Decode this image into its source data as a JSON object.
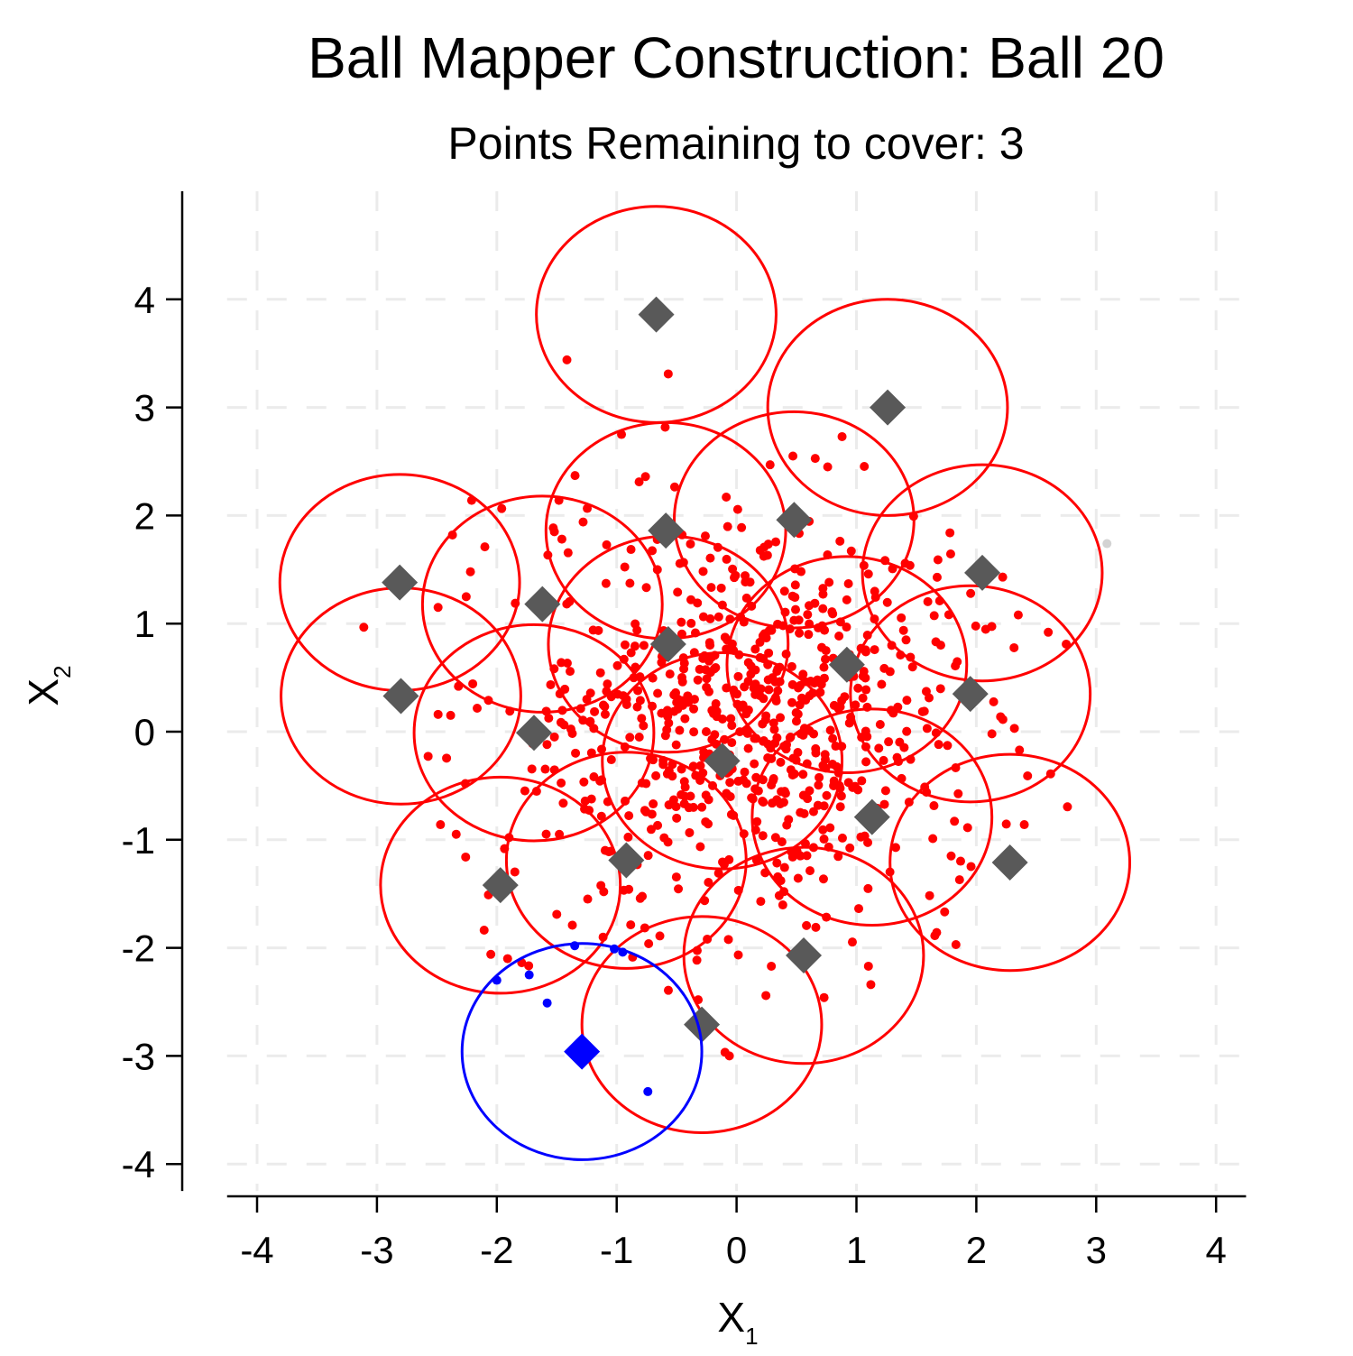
{
  "chart_data": {
    "type": "scatter",
    "title": "Ball Mapper Construction: Ball 20",
    "subtitle": "Points Remaining to cover: 3",
    "xlabel": {
      "main": "X",
      "sub": "1"
    },
    "ylabel": {
      "main": "X",
      "sub": "2"
    },
    "xlim": [
      -4.25,
      4.25
    ],
    "ylim": [
      -4.25,
      5.0
    ],
    "xticks": [
      -4,
      -3,
      -2,
      -1,
      0,
      1,
      2,
      3,
      4
    ],
    "yticks": [
      -4,
      -3,
      -2,
      -1,
      0,
      1,
      2,
      3,
      4
    ],
    "xtick_labels": [
      "-4",
      "-3",
      "-2",
      "-1",
      "0",
      "1",
      "2",
      "3",
      "4"
    ],
    "ytick_labels": [
      "-4",
      "-3",
      "-2",
      "-1",
      "0",
      "1",
      "2",
      "3",
      "4"
    ],
    "grid": true,
    "ball_radius": 1.0,
    "colors": {
      "covered_point": "#ff0000",
      "ball_edge": "#ff0000",
      "center": "#595959",
      "current": "#0000ff",
      "uncovered_point": "#d3d3d3",
      "grid": "#ebebeb"
    },
    "ball_centers": [
      [
        -0.67,
        3.86
      ],
      [
        1.26,
        3.0
      ],
      [
        -0.59,
        1.86
      ],
      [
        0.48,
        1.96
      ],
      [
        2.05,
        1.47
      ],
      [
        -2.81,
        1.38
      ],
      [
        -1.62,
        1.18
      ],
      [
        -0.57,
        0.81
      ],
      [
        0.92,
        0.62
      ],
      [
        -2.8,
        0.33
      ],
      [
        1.95,
        0.35
      ],
      [
        -1.69,
        -0.01
      ],
      [
        -0.12,
        -0.27
      ],
      [
        1.13,
        -0.79
      ],
      [
        -0.92,
        -1.19
      ],
      [
        2.28,
        -1.21
      ],
      [
        -1.97,
        -1.42
      ],
      [
        0.56,
        -2.07
      ],
      [
        -0.29,
        -2.71
      ]
    ],
    "current_ball": {
      "center": [
        -1.29,
        -2.96
      ],
      "label": "Ball 20"
    },
    "current_ball_points": [
      [
        -2.0,
        -2.3
      ],
      [
        -1.73,
        -2.25
      ],
      [
        -1.58,
        -2.51
      ],
      [
        -1.35,
        -1.98
      ],
      [
        -1.02,
        -2.01
      ],
      [
        -0.95,
        -2.04
      ],
      [
        -0.74,
        -3.33
      ]
    ],
    "uncovered_points": [
      [
        3.09,
        1.74
      ]
    ],
    "covered_points_listed": [
      [
        -0.57,
        3.31
      ],
      [
        -0.96,
        2.75
      ],
      [
        0.88,
        2.73
      ],
      [
        -0.76,
        2.36
      ],
      [
        0.47,
        2.55
      ],
      [
        0.76,
        2.45
      ],
      [
        -1.52,
        1.85
      ],
      [
        -1.28,
        1.94
      ],
      [
        -2.21,
        2.14
      ],
      [
        -2.37,
        1.82
      ],
      [
        -2.1,
        1.71
      ],
      [
        -2.22,
        1.48
      ],
      [
        1.78,
        1.84
      ],
      [
        1.68,
        1.59
      ],
      [
        2.22,
        1.43
      ],
      [
        2.35,
        1.08
      ],
      [
        2.6,
        0.92
      ],
      [
        2.75,
        0.81
      ],
      [
        -2.49,
        1.15
      ],
      [
        -2.49,
        0.16
      ],
      [
        -2.32,
        0.42
      ],
      [
        -2.07,
        0.29
      ],
      [
        -2.47,
        -0.86
      ],
      [
        -2.26,
        -1.16
      ],
      [
        -2.07,
        -1.51
      ],
      [
        -2.05,
        -2.06
      ],
      [
        -1.91,
        -2.1
      ],
      [
        -1.5,
        -1.69
      ],
      [
        -1.37,
        -1.79
      ],
      [
        -0.64,
        -1.89
      ],
      [
        -0.32,
        -2.48
      ],
      [
        -0.06,
        -3.0
      ],
      [
        0.29,
        -2.17
      ],
      [
        0.73,
        -2.46
      ],
      [
        1.1,
        -2.17
      ],
      [
        1.12,
        -2.34
      ],
      [
        1.83,
        -1.97
      ],
      [
        2.4,
        -0.86
      ],
      [
        2.36,
        -0.17
      ],
      [
        2.62,
        -0.39
      ],
      [
        2.13,
        -0.02
      ],
      [
        1.86,
        -1.37
      ],
      [
        1.79,
        -1.15
      ],
      [
        0.45,
        -0.05
      ],
      [
        0.1,
        0.2
      ],
      [
        0.3,
        0.5
      ],
      [
        -0.2,
        -0.5
      ],
      [
        0.6,
        0.9
      ],
      [
        -0.5,
        -0.8
      ],
      [
        0.8,
        -0.3
      ]
    ],
    "covered_random_count": 700,
    "random_seed": 20
  }
}
